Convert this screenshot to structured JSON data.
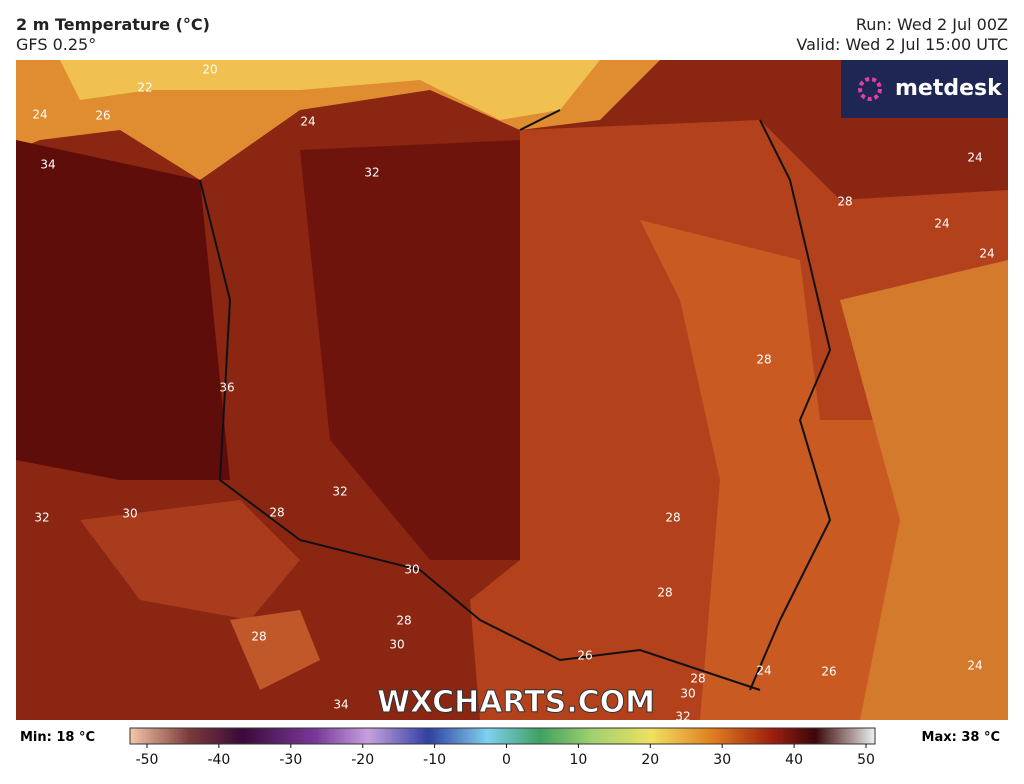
{
  "header": {
    "title": "2 m Temperature (°C)",
    "subtitle": "GFS 0.25°",
    "run": "Run: Wed 2 Jul 00Z",
    "valid": "Valid: Wed 2 Jul 15:00 UTC"
  },
  "logo": "metdesk",
  "watermark": "WXCHARTS.COM",
  "contour_labels": [
    20,
    22,
    24,
    26,
    24,
    34,
    32,
    28,
    24,
    24,
    24,
    28,
    36,
    32,
    32,
    30,
    28,
    28,
    30,
    28,
    28,
    30,
    28,
    26,
    24,
    26,
    24,
    28,
    30,
    34,
    32
  ],
  "colorbar": {
    "min_label": "Min: 18 °C",
    "max_label": "Max: 38 °C",
    "range": [
      -50,
      50
    ],
    "ticks": [
      -50,
      -40,
      -30,
      -20,
      -10,
      0,
      10,
      20,
      30,
      40,
      50
    ]
  }
}
